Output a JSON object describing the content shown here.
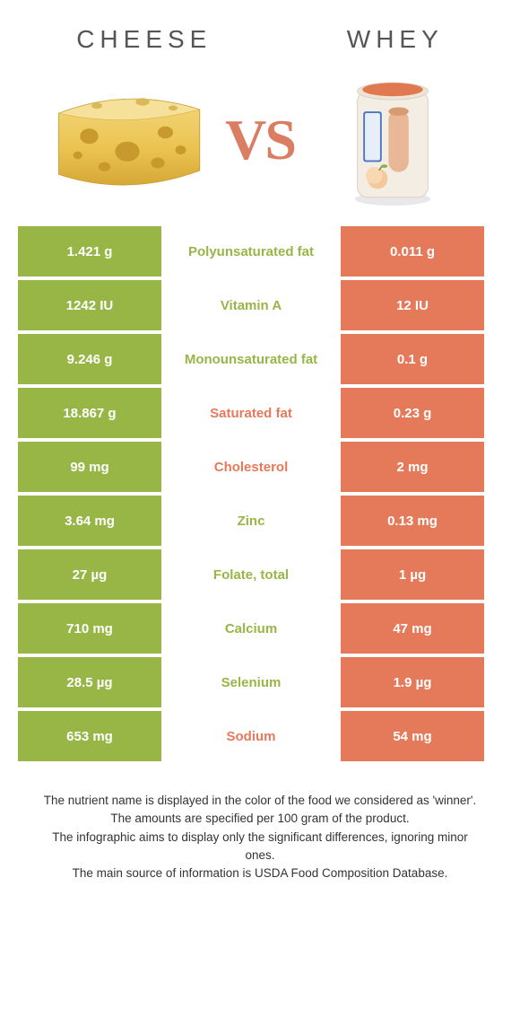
{
  "titles": {
    "left": "Cheese",
    "right": "Whey"
  },
  "vs_label": "VS",
  "colors": {
    "left_bg": "#97b646",
    "right_bg": "#e57a5b",
    "left_text": "#97b646",
    "right_text": "#e57a5b",
    "mid_bg": "#ffffff",
    "vs_color": "#da7d62",
    "title_color": "#555555"
  },
  "rows": [
    {
      "left": "1.421 g",
      "label": "Polyunsaturated fat",
      "right": "0.011 g",
      "winner": "left"
    },
    {
      "left": "1242 IU",
      "label": "Vitamin A",
      "right": "12 IU",
      "winner": "left"
    },
    {
      "left": "9.246 g",
      "label": "Monounsaturated fat",
      "right": "0.1 g",
      "winner": "left"
    },
    {
      "left": "18.867 g",
      "label": "Saturated fat",
      "right": "0.23 g",
      "winner": "right"
    },
    {
      "left": "99 mg",
      "label": "Cholesterol",
      "right": "2 mg",
      "winner": "right"
    },
    {
      "left": "3.64 mg",
      "label": "Zinc",
      "right": "0.13 mg",
      "winner": "left"
    },
    {
      "left": "27 µg",
      "label": "Folate, total",
      "right": "1 µg",
      "winner": "left"
    },
    {
      "left": "710 mg",
      "label": "Calcium",
      "right": "47 mg",
      "winner": "left"
    },
    {
      "left": "28.5 µg",
      "label": "Selenium",
      "right": "1.9 µg",
      "winner": "left"
    },
    {
      "left": "653 mg",
      "label": "Sodium",
      "right": "54 mg",
      "winner": "right"
    }
  ],
  "footer_lines": [
    "The nutrient name is displayed in the color of the food we considered as 'winner'.",
    "The amounts are specified per 100 gram of the product.",
    "The infographic aims to display only the significant differences, ignoring minor ones.",
    "The main source of information is USDA Food Composition Database."
  ]
}
